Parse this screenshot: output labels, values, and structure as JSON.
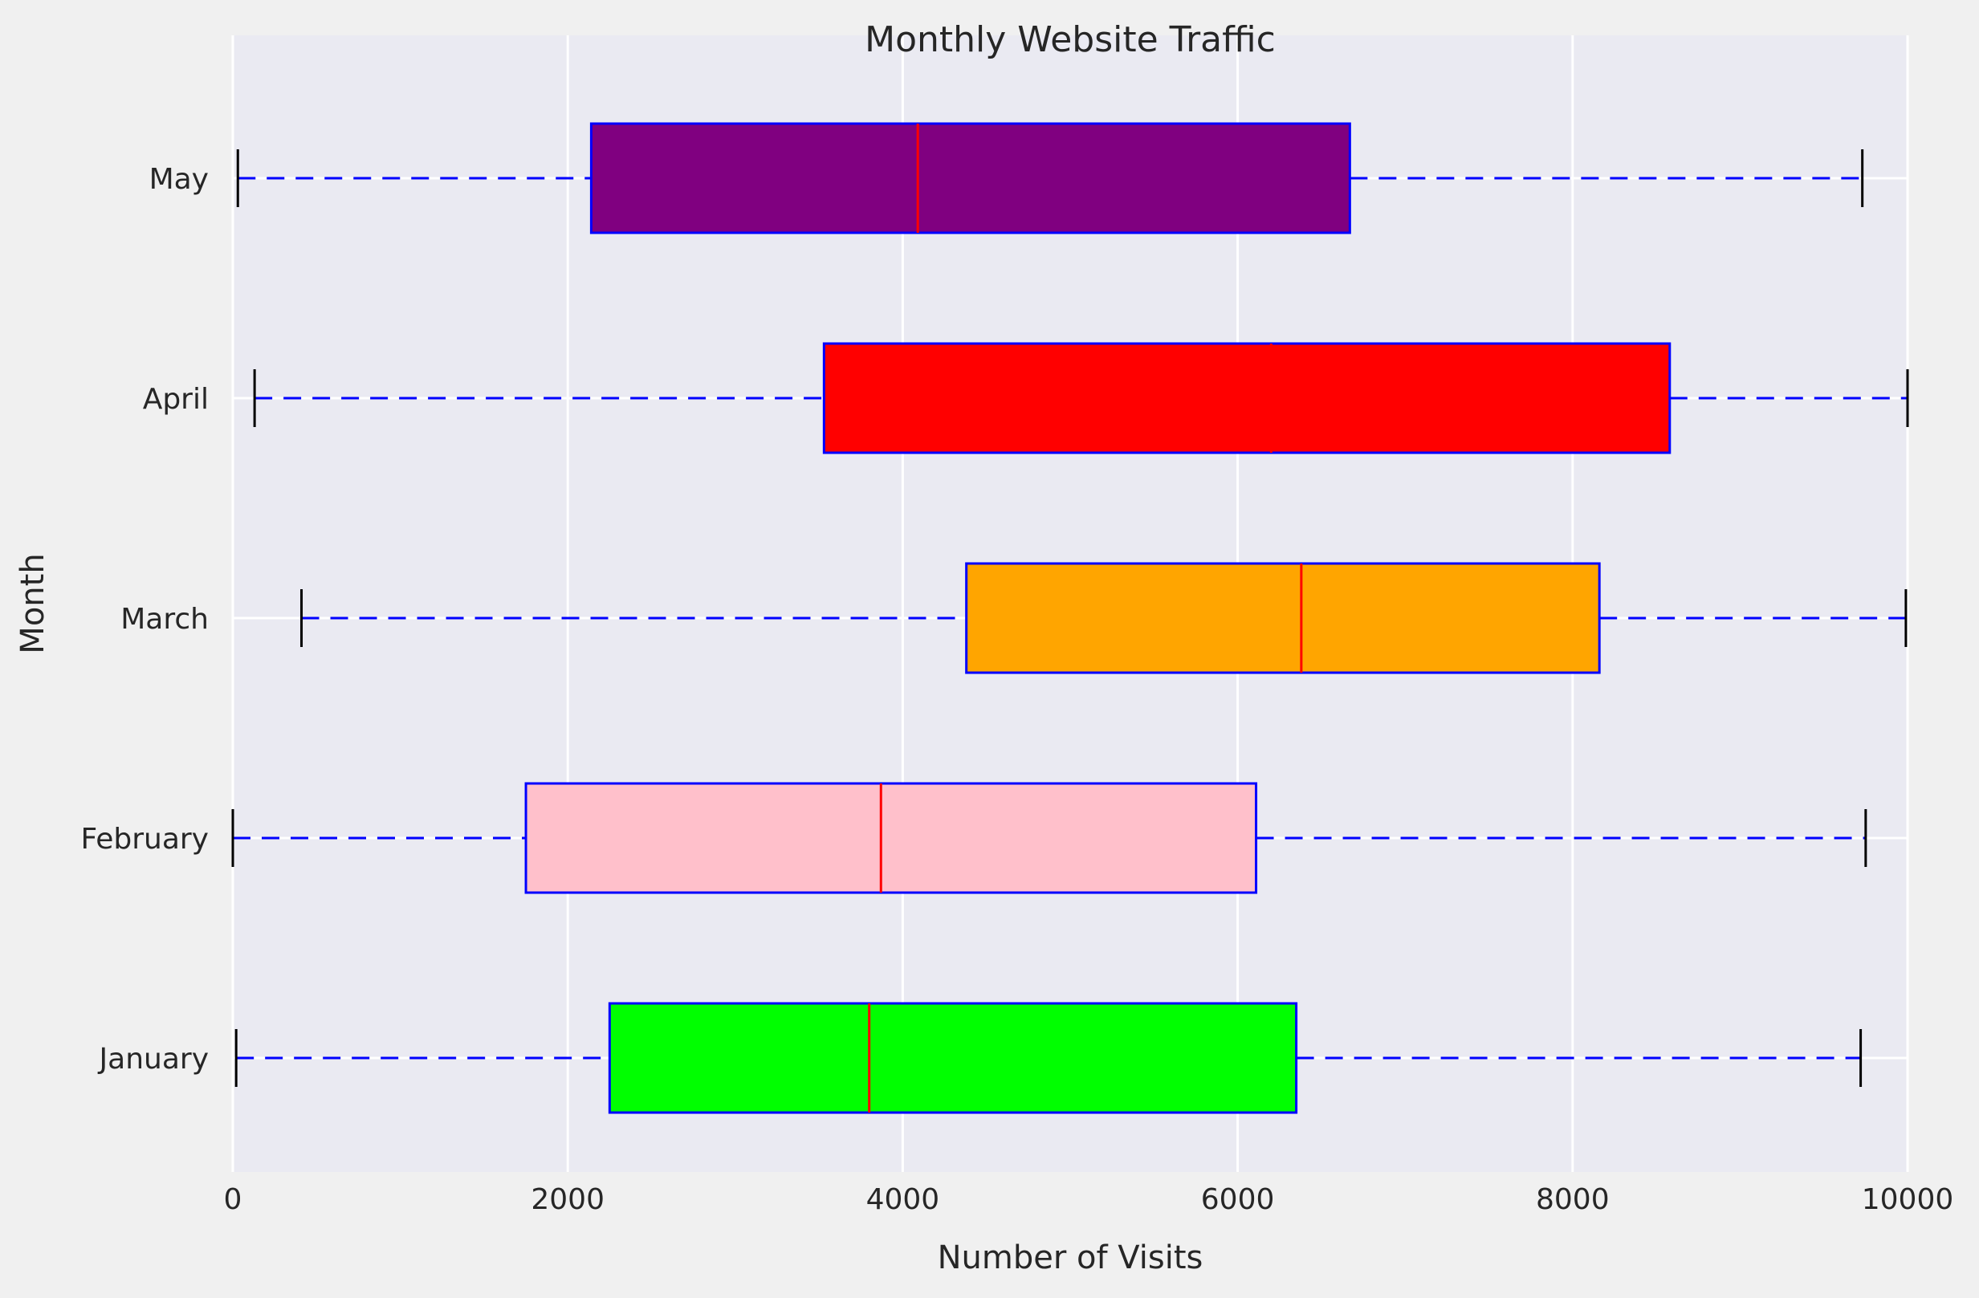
{
  "chart_data": {
    "type": "boxplot",
    "orientation": "horizontal",
    "title": "Monthly Website Traffic",
    "xlabel": "Number of Visits",
    "ylabel": "Month",
    "xlim": [
      0,
      10000
    ],
    "xticks": [
      0,
      2000,
      4000,
      6000,
      8000,
      10000
    ],
    "xtick_labels": [
      "0",
      "2000",
      "4000",
      "6000",
      "8000",
      "10000"
    ],
    "grid": true,
    "categories": [
      "January",
      "February",
      "March",
      "April",
      "May"
    ],
    "boxes": [
      {
        "label": "January",
        "min": 20,
        "q1": 2250,
        "median": 3800,
        "q3": 6350,
        "max": 9720,
        "fill": "#00ff00"
      },
      {
        "label": "February",
        "min": 0,
        "q1": 1750,
        "median": 3870,
        "q3": 6110,
        "max": 9750,
        "fill": "#ffc0cb"
      },
      {
        "label": "March",
        "min": 410,
        "q1": 4380,
        "median": 6380,
        "q3": 8160,
        "max": 9990,
        "fill": "#ffa500"
      },
      {
        "label": "April",
        "min": 130,
        "q1": 3530,
        "median": 6200,
        "q3": 8580,
        "max": 10000,
        "fill": "#ff0000"
      },
      {
        "label": "May",
        "min": 30,
        "q1": 2140,
        "median": 4090,
        "q3": 6670,
        "max": 9730,
        "fill": "#800080"
      }
    ],
    "colors": {
      "plot_background": "#eaeaf2",
      "figure_background": "#f0f0f0",
      "grid": "#ffffff",
      "box_edge": "#0000ff",
      "whisker": "#0000ff",
      "cap": "#000000",
      "median": "#ff0000"
    }
  }
}
